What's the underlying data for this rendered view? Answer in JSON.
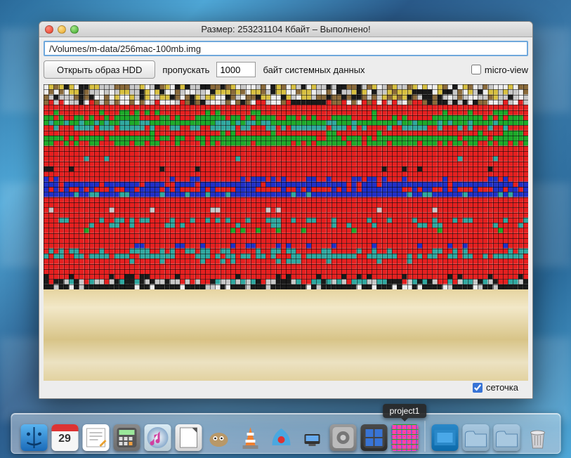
{
  "window": {
    "title": "Размер: 253231104 Кбайт  – Выполнено!",
    "path_value": "/Volumes/m-data/256mac-100mb.img",
    "open_button_label": "Открыть образ HDD",
    "skip_label": "пропускать",
    "skip_value": "1000",
    "skip_suffix": "байт системных данных",
    "microview_label": "micro-view",
    "microview_checked": false,
    "grid_label": "сеточка",
    "grid_checked": true
  },
  "visualization": {
    "cols": 96,
    "rows": 40,
    "cell_gap": 1,
    "grid_line_color": "#000000",
    "palette": {
      "k": "#1a1a1a",
      "r": "#e62020",
      "g": "#1eaa2a",
      "b": "#2030c8",
      "t": "#30a8a0",
      "y": "#d8c040",
      "w": "#eeeeee",
      "h": "#c8c8c8",
      "d": "#8a6a3a",
      "o": "#e07030"
    },
    "row_patterns": [
      "noise:kwhdy",
      "noise:kwhdy",
      "noise:kdyhw",
      "noise:kdrhw",
      "solid:r",
      "mix:r:g:0.10",
      "mix:r:g:0.55",
      "mix:g:t:0.25",
      "mix:r:t:0.40",
      "mix:r:g:0.15",
      "mix:g:r:0.20",
      "mix:g:r:0.40",
      "solid:r",
      "solid:r",
      "mix:r:t:0.06",
      "solid:r",
      "mix:r:k:0.08",
      "solid:r",
      "mix:r:b:0.20",
      "mix:b:r:0.15",
      "mix:r:b:0.55",
      "mix:b:t:0.20",
      "solid:r",
      "solid:r",
      "mix:r:h:0.12",
      "solid:r",
      "mix:r:t:0.35",
      "mix:r:t:0.20",
      "mix:r:g:0.08",
      "solid:r",
      "solid:r",
      "mix:r:b:0.12",
      "mix:r:t:0.45",
      "mix:t:r:0.30",
      "mix:r:t:0.15",
      "solid:r",
      "mix:r:g:0.04",
      "mix:r:k:0.15",
      "noise:krht",
      "noise:kkkkhw"
    ]
  },
  "dock": {
    "tooltip": "project1",
    "items": [
      {
        "name": "finder",
        "bg": "#3a9ae8"
      },
      {
        "name": "calendar",
        "bg": "#f2f2f2",
        "badge": "29"
      },
      {
        "name": "textedit",
        "bg": "#f2f2f2"
      },
      {
        "name": "calculator",
        "bg": "#8a8a8a"
      },
      {
        "name": "itunes",
        "bg": "#d8eaf4"
      },
      {
        "name": "libreoffice",
        "bg": "#f2f2f2"
      },
      {
        "name": "gimp",
        "bg": "#c8b090"
      },
      {
        "name": "vlc",
        "bg": "#f08030"
      },
      {
        "name": "transmission",
        "bg": "#4aa8e0"
      },
      {
        "name": "utilities",
        "bg": "#3a3a3a"
      },
      {
        "name": "system-preferences",
        "bg": "#9a9a9a"
      },
      {
        "name": "mission-control",
        "bg": "#4a4a4a"
      },
      {
        "name": "project1",
        "mosaic": true
      }
    ],
    "right_items": [
      {
        "name": "pictures-stack",
        "bg": "#2a88c8"
      },
      {
        "name": "downloads-stack",
        "bg": "#a8c8e0"
      },
      {
        "name": "applications-stack",
        "bg": "#a8c8e0"
      },
      {
        "name": "trash",
        "bg": "#c0c0c0"
      }
    ]
  }
}
